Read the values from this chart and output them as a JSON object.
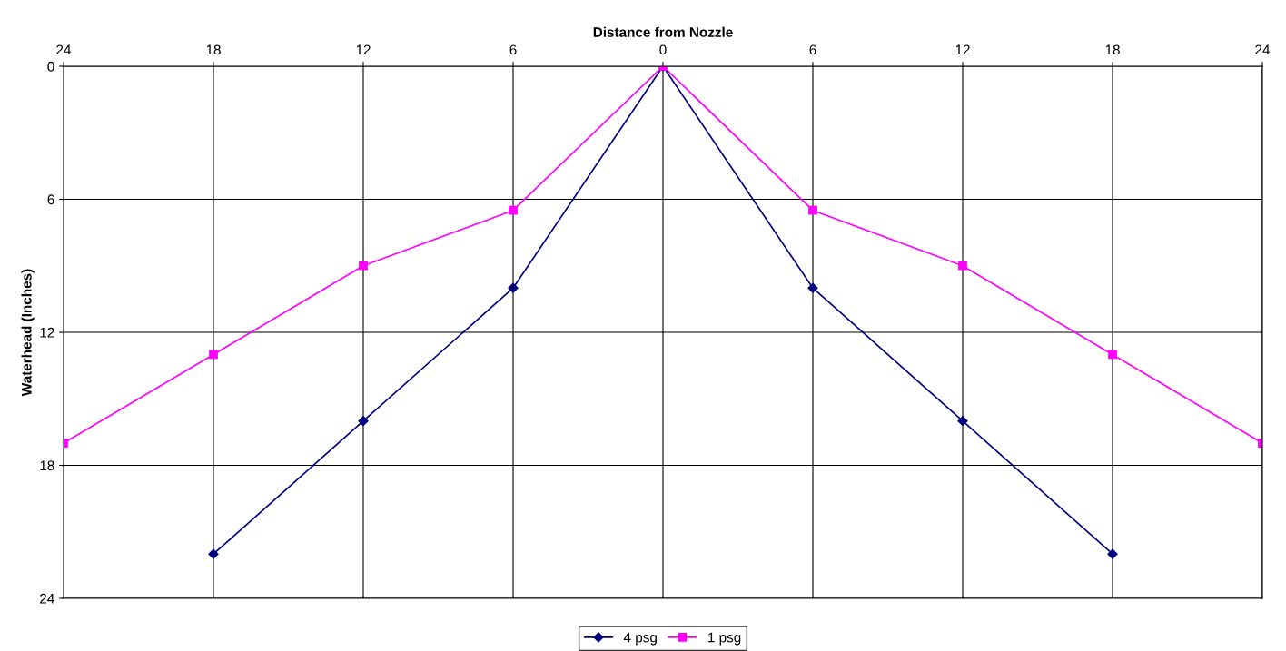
{
  "chart_data": {
    "type": "line",
    "xlabel": "Distance from Nozzle",
    "ylabel": "Waterhead (Inches)",
    "categories": [
      "24",
      "18",
      "12",
      "6",
      "0",
      "6",
      "12",
      "18",
      "24"
    ],
    "series": [
      {
        "name": "4 psg",
        "color": "#000080",
        "marker": "diamond",
        "values": [
          null,
          22,
          16,
          10,
          0,
          10,
          16,
          22,
          null
        ]
      },
      {
        "name": "1 psg",
        "color": "#ff00ff",
        "marker": "square",
        "values": [
          17,
          13,
          9,
          6.5,
          0,
          6.5,
          9,
          13,
          17
        ]
      }
    ],
    "ylim": [
      24,
      0
    ],
    "yticks": [
      0,
      6,
      12,
      18,
      24
    ],
    "grid": true,
    "legend": "bottom",
    "line_style": "solid"
  }
}
